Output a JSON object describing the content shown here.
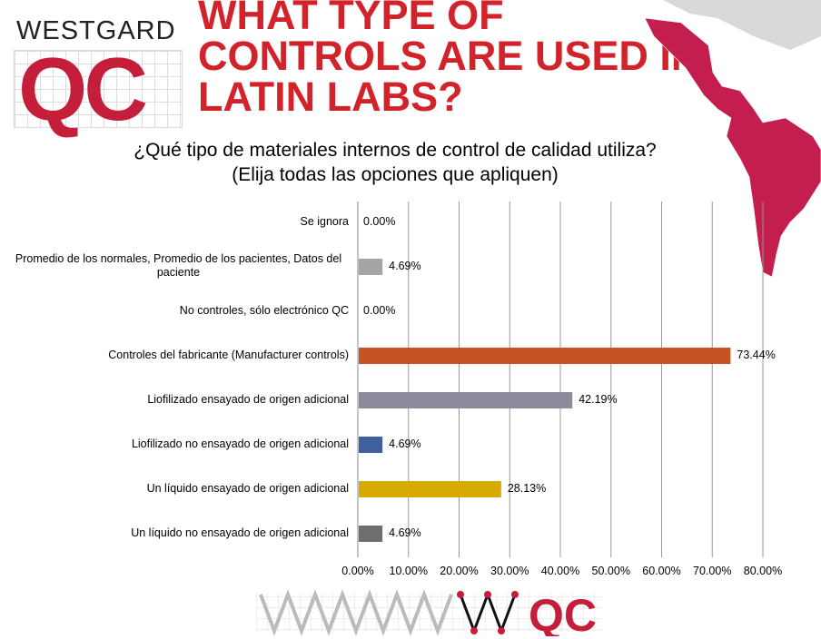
{
  "logo": {
    "word": "WESTGARD",
    "mark": "QC"
  },
  "title": "WHAT TYPE OF CONTROLS ARE USED IN LATIN LABS?",
  "subtitle_lines": [
    "¿Qué tipo de materiales internos de control de calidad utiliza?",
    "(Elija todas las opciones que apliquen)"
  ],
  "bottom_logo": {
    "mark": "QC"
  },
  "chart_data": {
    "type": "bar",
    "orientation": "horizontal",
    "categories": [
      "Se ignora",
      "Promedio de los normales, Promedio de los pacientes, Datos del paciente",
      "No controles, sólo electrónico QC",
      "Controles del fabricante  (Manufacturer controls)",
      "Liofilizado ensayado de origen adicional",
      "Liofilizado no ensayado de origen adicional",
      "Un líquido ensayado de origen adicional",
      "Un líquido no ensayado de origen adicional"
    ],
    "values": [
      0.0,
      4.69,
      0.0,
      73.44,
      42.19,
      4.69,
      28.13,
      4.69
    ],
    "data_labels": [
      "0.00%",
      "4.69%",
      "0.00%",
      "73.44%",
      "42.19%",
      "4.69%",
      "28.13%",
      "4.69%"
    ],
    "colors": [
      "#a5a5a5",
      "#a5a5a5",
      "#a5a5a5",
      "#c55424",
      "#8b8b9b",
      "#3f5f9f",
      "#d6ab00",
      "#6e6e6e"
    ],
    "xlim": [
      0,
      80
    ],
    "xticks": [
      "0.00%",
      "10.00%",
      "20.00%",
      "30.00%",
      "40.00%",
      "50.00%",
      "60.00%",
      "70.00%",
      "80.00%"
    ],
    "grid": true,
    "legend": "none"
  }
}
